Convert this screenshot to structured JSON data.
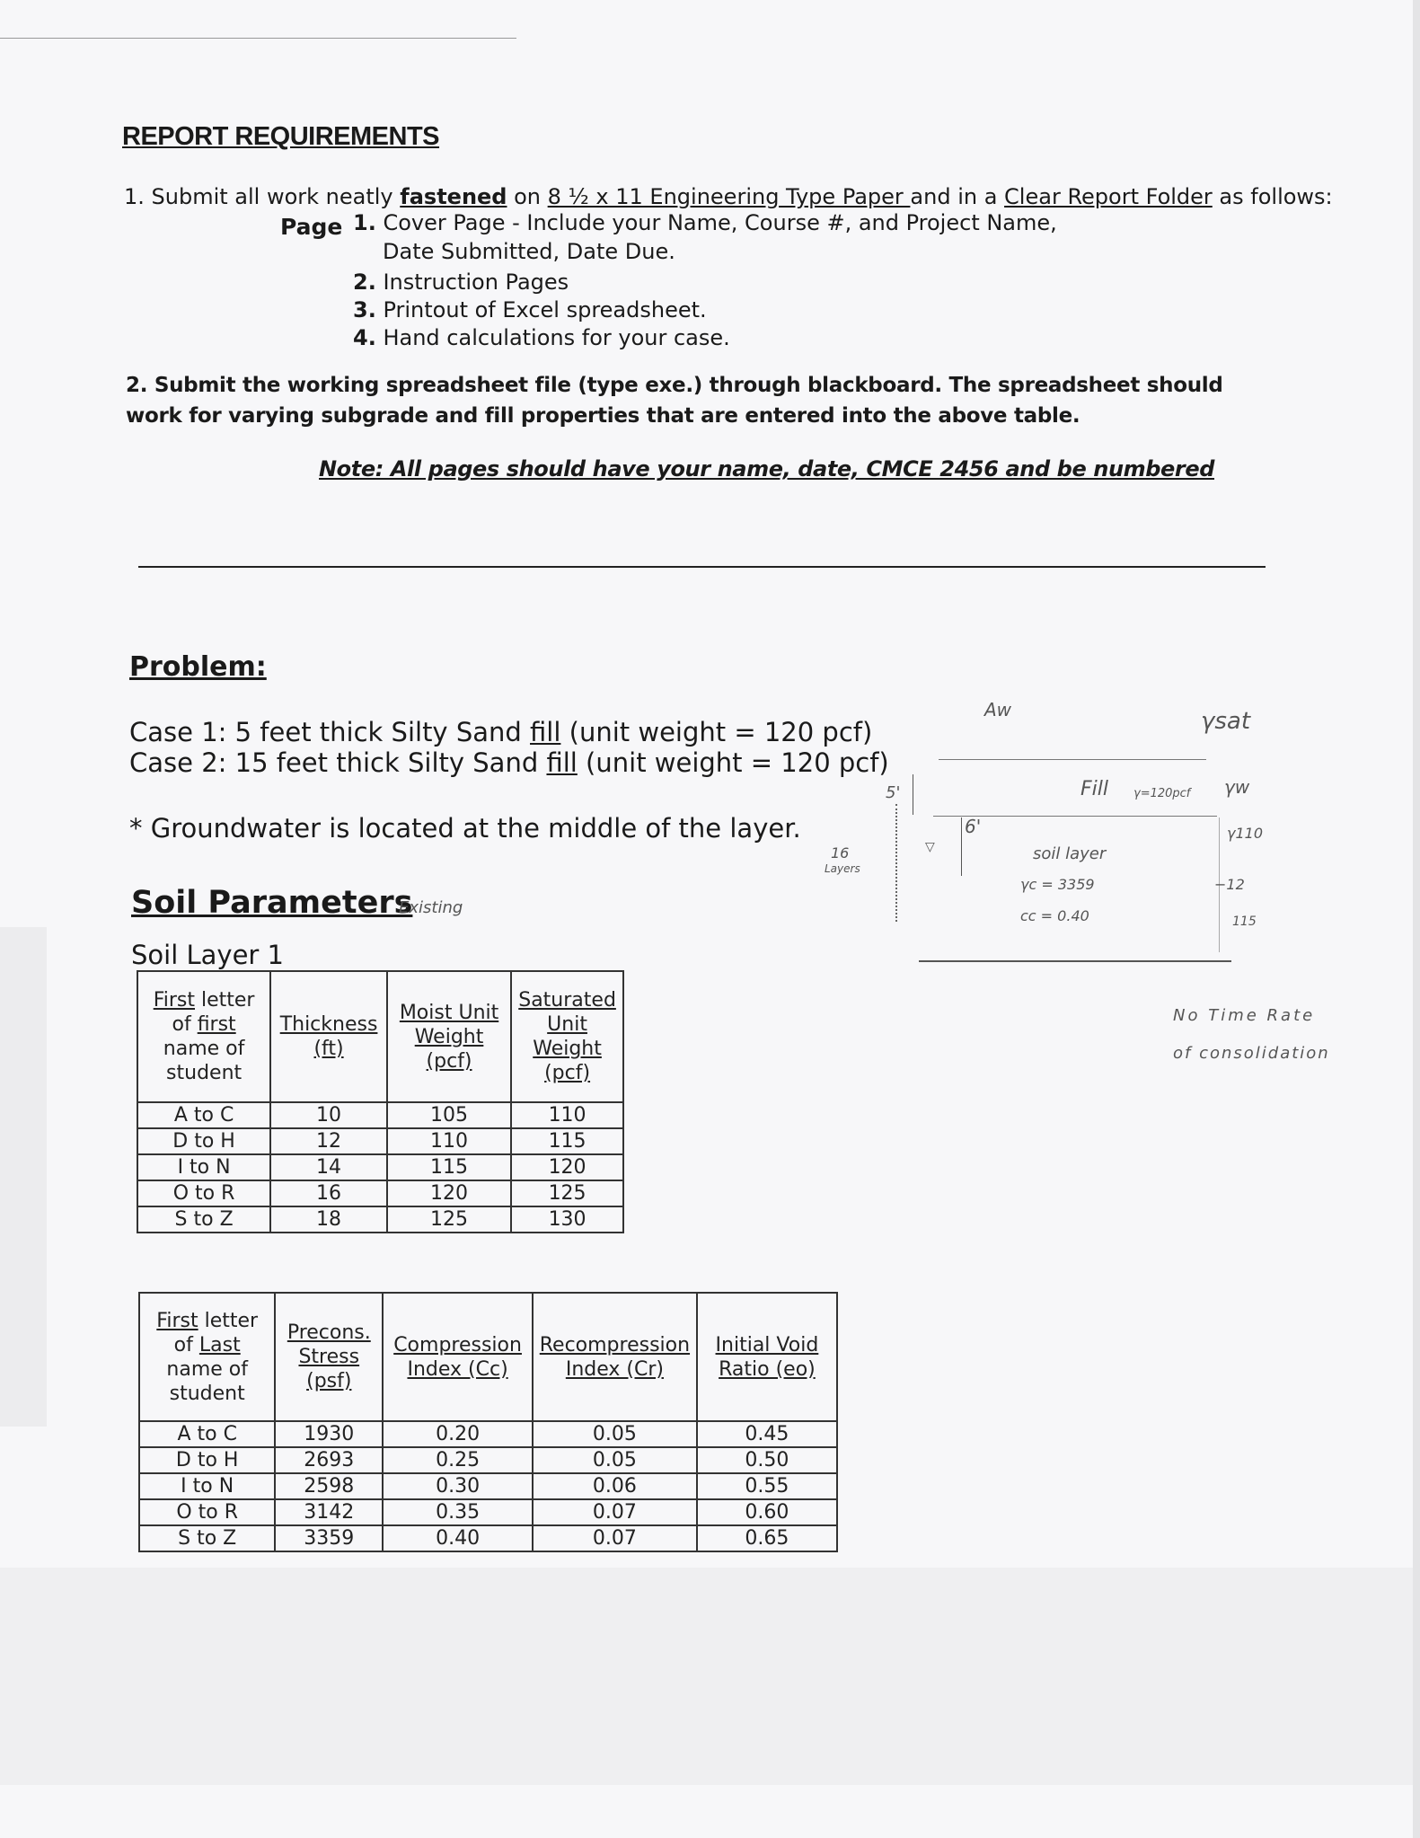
{
  "requirements": {
    "title": "REPORT REQUIREMENTS",
    "item1": {
      "prefix": "1. Submit all work neatly ",
      "fastened": "fastened",
      "on": " on ",
      "paper": "8 ½ x 11 Engineering Type Paper ",
      "and": "and in a ",
      "folder": "Clear Report Folder",
      "suffix": " as follows:"
    },
    "page_label": "Page",
    "pages": [
      {
        "num": "1.",
        "text": "Cover Page - Include your Name, Course #, and Project Name,",
        "cont": "Date Submitted, Date Due."
      },
      {
        "num": "2.",
        "text": "Instruction Pages"
      },
      {
        "num": "3.",
        "text": "Printout of Excel spreadsheet."
      },
      {
        "num": "4.",
        "text": "Hand calculations for your case."
      }
    ],
    "item2_line1": "2. Submit the working spreadsheet file (type exe.) through blackboard. The spreadsheet should",
    "item2_line2": "work for varying subgrade and fill properties that are entered into the above table.",
    "note": "Note: All pages should have your name, date, CMCE 2456 and be numbered"
  },
  "problem": {
    "title": "Problem:",
    "case1": {
      "pre": "Case 1: 5 feet thick Silty Sand ",
      "fill": "fill",
      "post": " (unit weight = 120 pcf)"
    },
    "case2": {
      "pre": "Case 2: 15 feet thick Silty Sand ",
      "fill": "fill",
      "post": " (unit weight = 120 pcf)"
    },
    "groundwater": "* Groundwater is located at the middle of the layer."
  },
  "soil": {
    "title": "Soil Parameters",
    "handwritten_note": "Existing",
    "layer_title": "Soil Layer 1",
    "table1": {
      "headers": [
        [
          "First",
          " letter",
          "of ",
          "first",
          "name of",
          "student"
        ],
        [
          "Thickness",
          "(ft)"
        ],
        [
          "Moist Unit",
          "Weight",
          "(pcf)"
        ],
        [
          "Saturated",
          "Unit",
          "Weight",
          "(pcf)"
        ]
      ],
      "rows": [
        [
          "A to C",
          "10",
          "105",
          "110"
        ],
        [
          "D to H",
          "12",
          "110",
          "115"
        ],
        [
          "I to N",
          "14",
          "115",
          "120"
        ],
        [
          "O to R",
          "16",
          "120",
          "125"
        ],
        [
          "S to Z",
          "18",
          "125",
          "130"
        ]
      ]
    },
    "table2": {
      "headers": [
        [
          "First",
          " letter",
          "of ",
          "Last",
          "name of",
          "student"
        ],
        [
          "Precons.",
          "Stress",
          "(psf)"
        ],
        [
          "Compression",
          "Index (Cc)"
        ],
        [
          "Recompression",
          "Index (Cr)"
        ],
        [
          "Initial Void",
          "Ratio (eo)"
        ]
      ],
      "rows": [
        [
          "A to C",
          "1930",
          "0.20",
          "0.05",
          "0.45"
        ],
        [
          "D to H",
          "2693",
          "0.25",
          "0.05",
          "0.50"
        ],
        [
          "I to N",
          "2598",
          "0.30",
          "0.06",
          "0.55"
        ],
        [
          "O to R",
          "3142",
          "0.35",
          "0.07",
          "0.60"
        ],
        [
          "S to Z",
          "3359",
          "0.40",
          "0.07",
          "0.65"
        ]
      ]
    }
  },
  "sketch": {
    "aw": "Aw",
    "gamma_sat": "γsat",
    "fill": "Fill",
    "fill_gamma": "γ=120pcf",
    "gamma_w": "γw",
    "five_ft": "5'",
    "six_ft": "6'",
    "layer_count": "16",
    "layers_word": "Layers",
    "soil_layer": "soil layer",
    "gamma_c": "γc = 3359",
    "cc": "cc = 0.40",
    "g110": "γ110",
    "minus12": "−12",
    "v115": "115",
    "note_line1": "No Time Rate",
    "note_line2": "of consolidation"
  }
}
